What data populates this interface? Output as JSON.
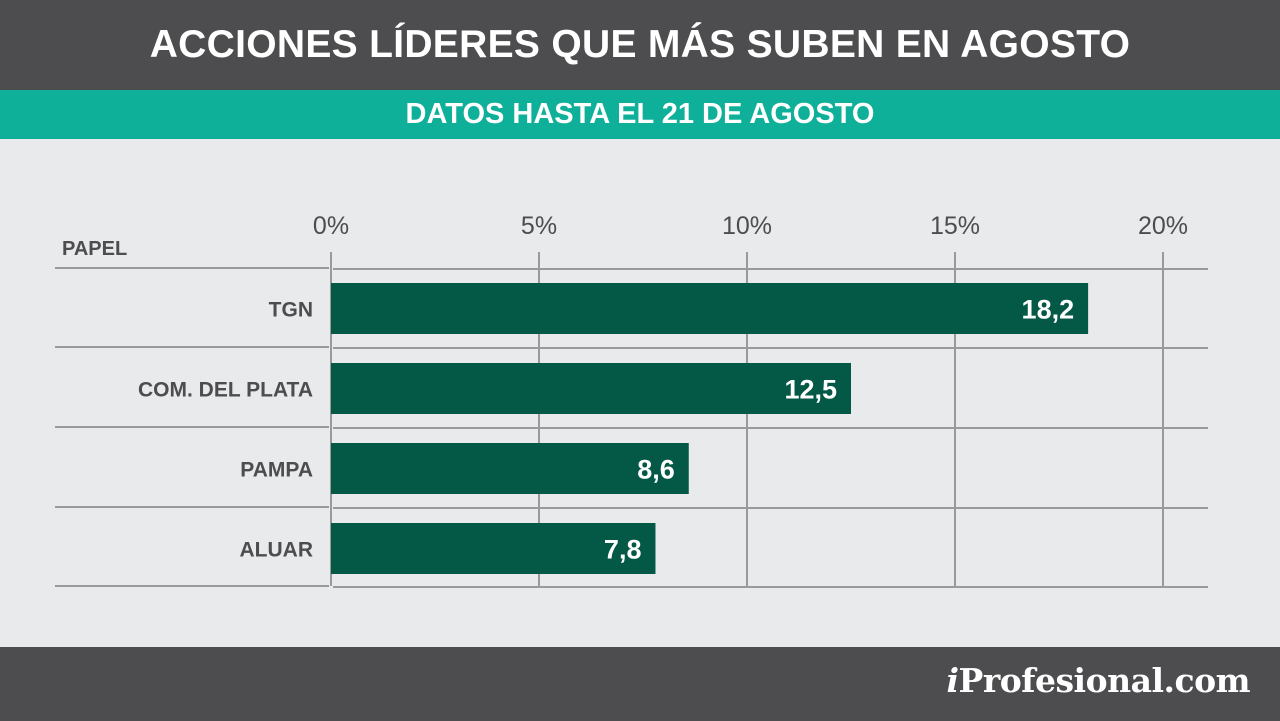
{
  "header": {
    "title": "ACCIONES LÍDERES QUE MÁS SUBEN EN AGOSTO",
    "subtitle": "DATOS HASTA EL 21 DE AGOSTO"
  },
  "footer": {
    "logo_i": "i",
    "logo_rest": "Profesional.com"
  },
  "colors": {
    "header_bg": "#4d4d4f",
    "subheader_bg": "#0fb09a",
    "bar": "#045946",
    "background": "#e9eaeb",
    "grid": "#9a9a9c"
  },
  "chart_data": {
    "type": "bar",
    "orientation": "horizontal",
    "category_header": "PAPEL",
    "categories": [
      "TGN",
      "COM. DEL PLATA",
      "PAMPA",
      "ALUAR"
    ],
    "values": [
      18.2,
      12.5,
      8.6,
      7.8
    ],
    "value_labels": [
      "18,2",
      "12,5",
      "8,6",
      "7,8"
    ],
    "xticks": [
      0,
      5,
      10,
      15,
      20
    ],
    "xtick_labels": [
      "0%",
      "5%",
      "10%",
      "15%",
      "20%"
    ],
    "xlim": [
      0,
      20
    ],
    "grid": true
  }
}
